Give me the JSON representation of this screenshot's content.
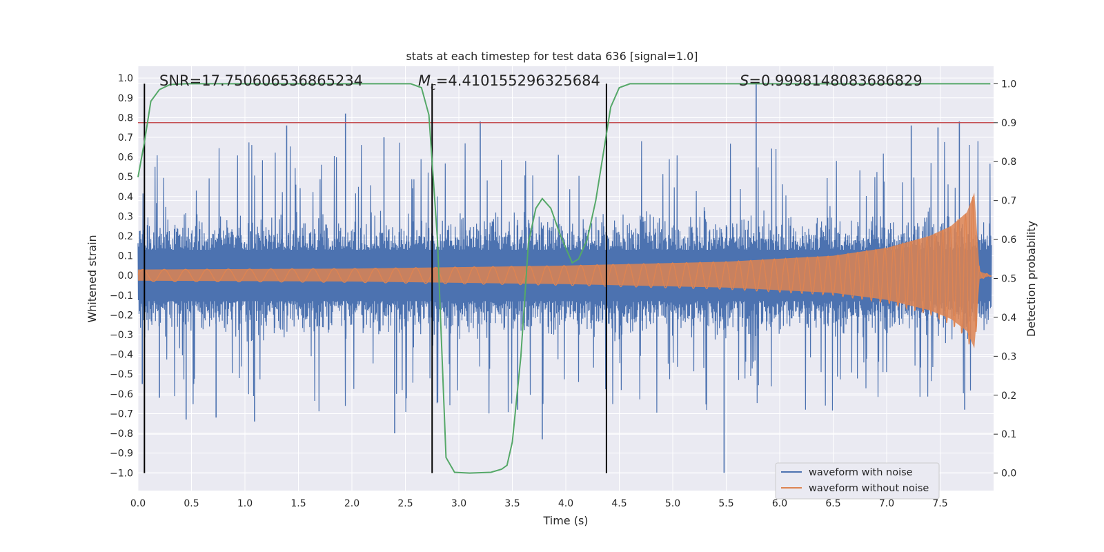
{
  "chart_data": {
    "type": "line",
    "title": "stats at each timestep for test data 636 [signal=1.0]",
    "xlabel": "Time (s)",
    "ylabel": "Whitened strain",
    "ylabel_right": "Detection probability",
    "xlim": [
      0.0,
      8.0
    ],
    "ylim": [
      -1.09,
      1.06
    ],
    "ylim_right": [
      -0.045,
      1.045
    ],
    "x_ticks": [
      "0.0",
      "0.5",
      "1.0",
      "1.5",
      "2.0",
      "2.5",
      "3.0",
      "3.5",
      "4.0",
      "4.5",
      "5.0",
      "5.5",
      "6.0",
      "6.5",
      "7.0",
      "7.5"
    ],
    "y_ticks": [
      "1.0",
      "0.9",
      "0.8",
      "0.7",
      "0.6",
      "0.5",
      "0.4",
      "0.3",
      "0.2",
      "0.1",
      "0.0",
      "−0.1",
      "−0.2",
      "−0.3",
      "−0.4",
      "−0.5",
      "−0.6",
      "−0.7",
      "−0.8",
      "−0.9",
      "−1.0"
    ],
    "y_ticks_right": [
      "1.0",
      "0.9",
      "0.8",
      "0.7",
      "0.6",
      "0.5",
      "0.4",
      "0.3",
      "0.2",
      "0.1",
      "0.0"
    ],
    "grid": true,
    "legend_position": "lower-right",
    "annotations": {
      "snr": "SNR=17.750606536865234",
      "mc_symbol": "M",
      "mc_sub": "c",
      "mc_value": "=4.410155296325684",
      "s_symbol": "S",
      "s_value": "=0.9998148083686829"
    },
    "threshold": {
      "axis": "right",
      "value": 0.9,
      "color": "#c44e52"
    },
    "markers_x": [
      0.06,
      2.75,
      4.38
    ],
    "series": [
      {
        "name": "waveform with noise",
        "color": "#4c72b0",
        "axis": "left",
        "peaks": [
          {
            "x": 0.04,
            "y": -0.55
          },
          {
            "x": 0.2,
            "y": -0.62
          },
          {
            "x": 0.45,
            "y": -0.73
          },
          {
            "x": 0.73,
            "y": -0.72
          },
          {
            "x": 1.09,
            "y": -0.74
          },
          {
            "x": 1.39,
            "y": 0.76
          },
          {
            "x": 1.94,
            "y": 0.82
          },
          {
            "x": 2.3,
            "y": 0.7
          },
          {
            "x": 2.4,
            "y": -0.8
          },
          {
            "x": 3.2,
            "y": 0.78
          },
          {
            "x": 3.55,
            "y": -0.68
          },
          {
            "x": 3.78,
            "y": -0.83
          },
          {
            "x": 5.48,
            "y": -1.0
          },
          {
            "x": 5.78,
            "y": 0.97
          },
          {
            "x": 7.23,
            "y": 0.76
          },
          {
            "x": 7.48,
            "y": 0.75
          },
          {
            "x": 7.68,
            "y": 0.78
          },
          {
            "x": 7.73,
            "y": -0.68
          }
        ]
      },
      {
        "name": "waveform without noise",
        "color": "#dd8452",
        "axis": "left",
        "envelope": [
          {
            "x": 0.0,
            "y": 0.03
          },
          {
            "x": 2.0,
            "y": 0.035
          },
          {
            "x": 4.0,
            "y": 0.05
          },
          {
            "x": 5.5,
            "y": 0.07
          },
          {
            "x": 6.5,
            "y": 0.1
          },
          {
            "x": 7.0,
            "y": 0.14
          },
          {
            "x": 7.4,
            "y": 0.2
          },
          {
            "x": 7.6,
            "y": 0.25
          },
          {
            "x": 7.75,
            "y": 0.32
          },
          {
            "x": 7.82,
            "y": 0.42
          },
          {
            "x": 7.87,
            "y": 0.02
          },
          {
            "x": 8.0,
            "y": 0.0
          }
        ]
      },
      {
        "name": "detection probability",
        "color": "#55a868",
        "axis": "right",
        "points": [
          {
            "x": 0.0,
            "y": 0.76
          },
          {
            "x": 0.06,
            "y": 0.85
          },
          {
            "x": 0.12,
            "y": 0.955
          },
          {
            "x": 0.2,
            "y": 0.985
          },
          {
            "x": 0.3,
            "y": 0.998
          },
          {
            "x": 0.45,
            "y": 1.0
          },
          {
            "x": 2.55,
            "y": 1.0
          },
          {
            "x": 2.65,
            "y": 0.99
          },
          {
            "x": 2.72,
            "y": 0.92
          },
          {
            "x": 2.8,
            "y": 0.6
          },
          {
            "x": 2.88,
            "y": 0.04
          },
          {
            "x": 2.96,
            "y": 0.002
          },
          {
            "x": 3.1,
            "y": 0.0
          },
          {
            "x": 3.3,
            "y": 0.002
          },
          {
            "x": 3.4,
            "y": 0.01
          },
          {
            "x": 3.45,
            "y": 0.02
          },
          {
            "x": 3.5,
            "y": 0.08
          },
          {
            "x": 3.58,
            "y": 0.3
          },
          {
            "x": 3.65,
            "y": 0.59
          },
          {
            "x": 3.72,
            "y": 0.68
          },
          {
            "x": 3.78,
            "y": 0.705
          },
          {
            "x": 3.86,
            "y": 0.68
          },
          {
            "x": 3.95,
            "y": 0.61
          },
          {
            "x": 4.06,
            "y": 0.54
          },
          {
            "x": 4.12,
            "y": 0.55
          },
          {
            "x": 4.2,
            "y": 0.6
          },
          {
            "x": 4.28,
            "y": 0.7
          },
          {
            "x": 4.35,
            "y": 0.82
          },
          {
            "x": 4.42,
            "y": 0.94
          },
          {
            "x": 4.5,
            "y": 0.99
          },
          {
            "x": 4.6,
            "y": 1.0
          },
          {
            "x": 8.0,
            "y": 1.0
          }
        ]
      }
    ]
  }
}
